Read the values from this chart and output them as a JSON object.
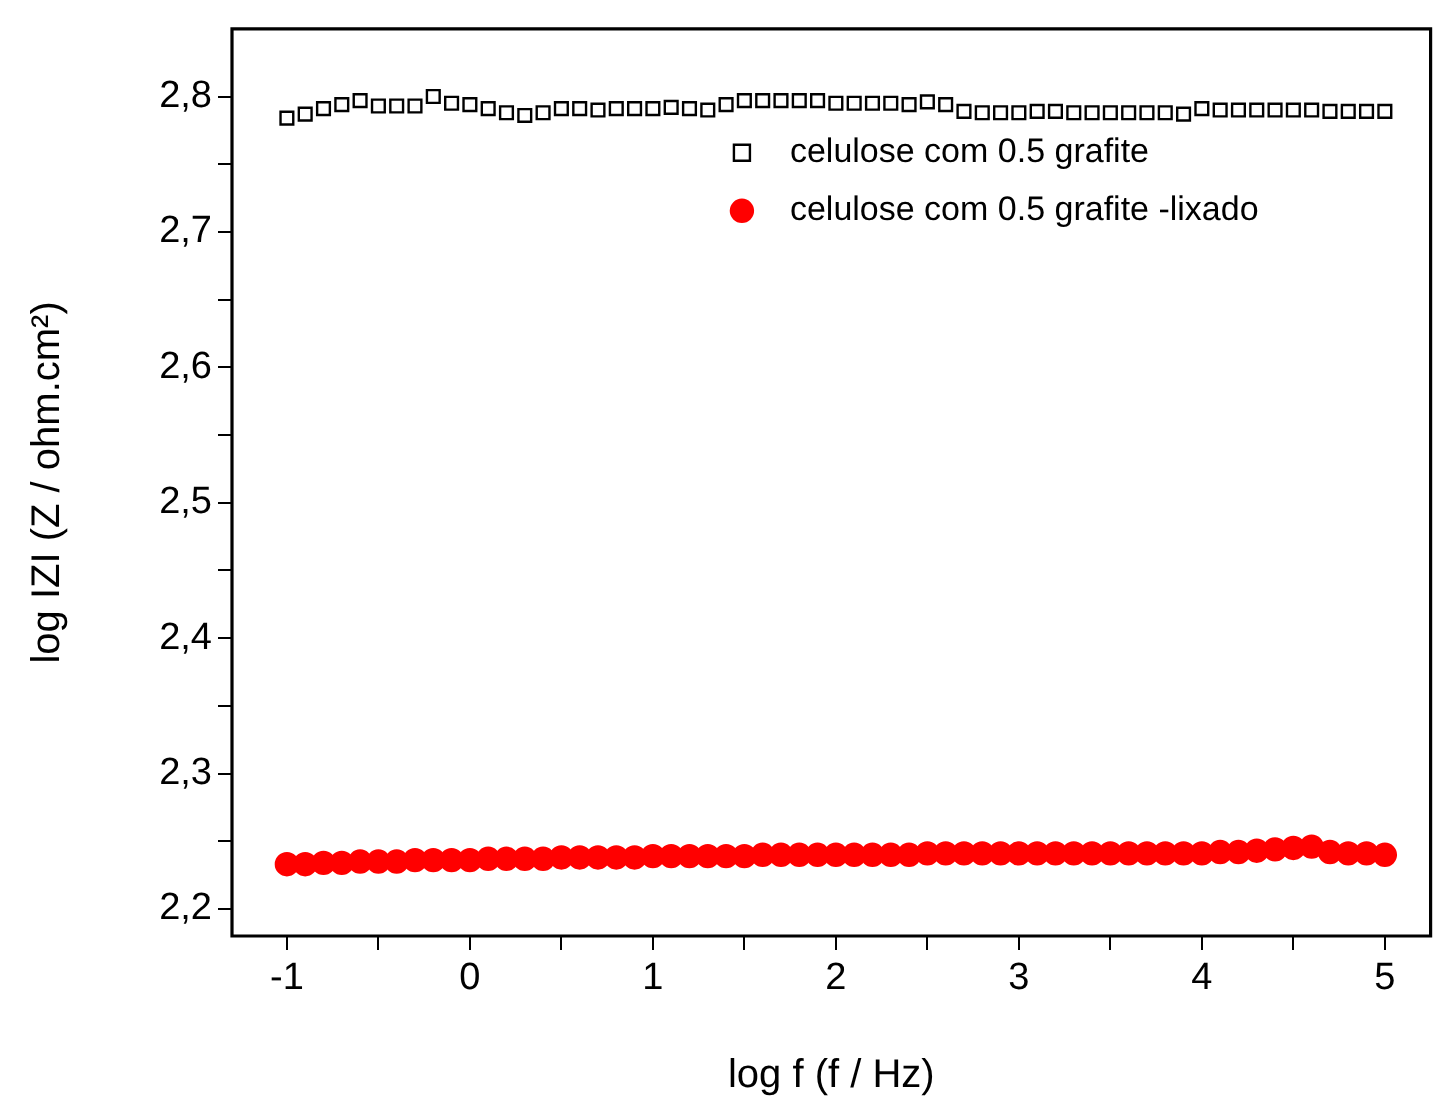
{
  "chart_data": {
    "type": "scatter",
    "xlabel": "log f (f / Hz)",
    "ylabel": "log IZI (Z / ohm.cm²)",
    "x": [
      -1.0,
      -0.9,
      -0.8,
      -0.7,
      -0.6,
      -0.5,
      -0.4,
      -0.3,
      -0.2,
      -0.1,
      0.0,
      0.1,
      0.2,
      0.3,
      0.4,
      0.5,
      0.6,
      0.7,
      0.8,
      0.9,
      1.0,
      1.1,
      1.2,
      1.3,
      1.4,
      1.5,
      1.6,
      1.7,
      1.8,
      1.9,
      2.0,
      2.1,
      2.2,
      2.3,
      2.4,
      2.5,
      2.6,
      2.7,
      2.8,
      2.9,
      3.0,
      3.1,
      3.2,
      3.3,
      3.4,
      3.5,
      3.6,
      3.7,
      3.8,
      3.9,
      4.0,
      4.1,
      4.2,
      4.3,
      4.4,
      4.5,
      4.6,
      4.7,
      4.8,
      4.9,
      5.0
    ],
    "series": [
      {
        "name": "celulose com 0.5 grafite",
        "color": "#000000",
        "marker": "square",
        "values": [
          2.784,
          2.787,
          2.791,
          2.794,
          2.797,
          2.793,
          2.793,
          2.793,
          2.8,
          2.795,
          2.794,
          2.791,
          2.788,
          2.786,
          2.788,
          2.791,
          2.791,
          2.79,
          2.791,
          2.791,
          2.791,
          2.792,
          2.791,
          2.79,
          2.794,
          2.797,
          2.797,
          2.797,
          2.797,
          2.797,
          2.795,
          2.795,
          2.795,
          2.795,
          2.794,
          2.796,
          2.794,
          2.789,
          2.788,
          2.788,
          2.788,
          2.789,
          2.789,
          2.788,
          2.788,
          2.788,
          2.788,
          2.788,
          2.788,
          2.787,
          2.791,
          2.79,
          2.79,
          2.79,
          2.79,
          2.79,
          2.79,
          2.789,
          2.789,
          2.789,
          2.789
        ]
      },
      {
        "name": "celulose com 0.5 grafite -lixado",
        "color": "#ff0000",
        "marker": "circle",
        "values": [
          2.233,
          2.233,
          2.234,
          2.234,
          2.235,
          2.235,
          2.235,
          2.236,
          2.236,
          2.236,
          2.236,
          2.237,
          2.237,
          2.237,
          2.237,
          2.238,
          2.238,
          2.238,
          2.238,
          2.238,
          2.239,
          2.239,
          2.239,
          2.239,
          2.239,
          2.239,
          2.24,
          2.24,
          2.24,
          2.24,
          2.24,
          2.24,
          2.24,
          2.24,
          2.24,
          2.241,
          2.241,
          2.241,
          2.241,
          2.241,
          2.241,
          2.241,
          2.241,
          2.241,
          2.241,
          2.241,
          2.241,
          2.241,
          2.241,
          2.241,
          2.241,
          2.242,
          2.242,
          2.243,
          2.244,
          2.245,
          2.246,
          2.242,
          2.241,
          2.241,
          2.24
        ]
      }
    ],
    "xlim": [
      -1.3,
      5.25
    ],
    "ylim": [
      2.18,
      2.85
    ],
    "xticks": [
      -1,
      {
        "value": -0.5,
        "label": null
      },
      0,
      {
        "value": 0.5,
        "label": null
      },
      1,
      {
        "value": 1.5,
        "label": null
      },
      2,
      {
        "value": 2.5,
        "label": null
      },
      3,
      {
        "value": 3.5,
        "label": null
      },
      4,
      {
        "value": 4.5,
        "label": null
      },
      5
    ],
    "yticks": [
      {
        "value": 2.2,
        "label": "2,2"
      },
      {
        "value": 2.25,
        "label": null
      },
      {
        "value": 2.3,
        "label": "2,3"
      },
      {
        "value": 2.35,
        "label": null
      },
      {
        "value": 2.4,
        "label": "2,4"
      },
      {
        "value": 2.45,
        "label": null
      },
      {
        "value": 2.5,
        "label": "2,5"
      },
      {
        "value": 2.55,
        "label": null
      },
      {
        "value": 2.6,
        "label": "2,6"
      },
      {
        "value": 2.65,
        "label": null
      },
      {
        "value": 2.7,
        "label": "2,7"
      },
      {
        "value": 2.75,
        "label": null
      },
      {
        "value": 2.8,
        "label": "2,8"
      }
    ],
    "grid": false,
    "legend": "top right"
  }
}
